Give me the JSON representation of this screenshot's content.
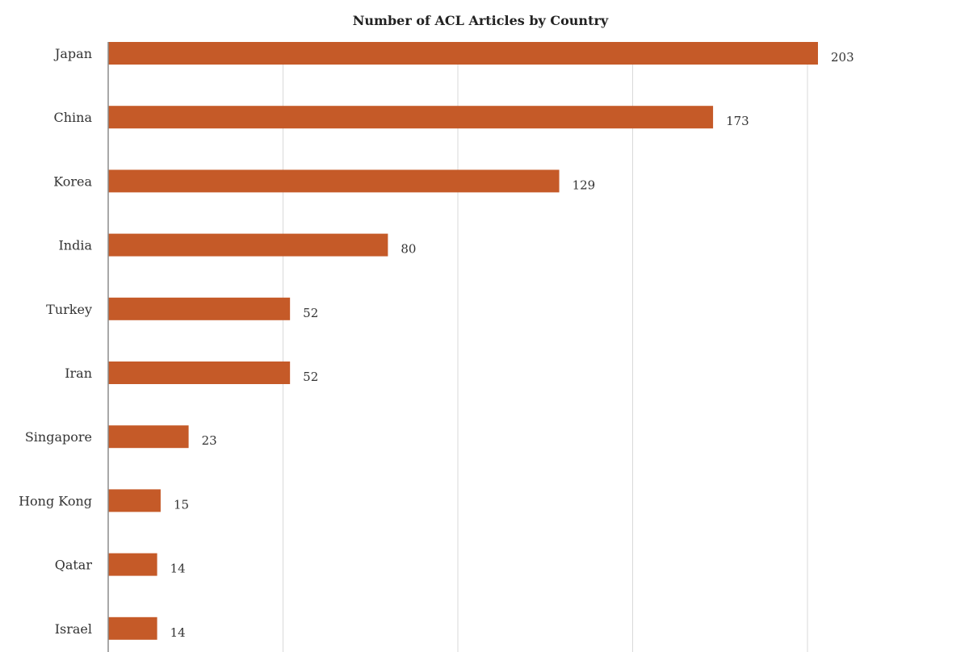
{
  "chart_data": {
    "type": "bar",
    "orientation": "horizontal",
    "title": "Number of ACL Articles by Country",
    "xlabel": "",
    "ylabel": "",
    "categories": [
      "Japan",
      "China",
      "Korea",
      "India",
      "Turkey",
      "Iran",
      "Singapore",
      "Hong Kong",
      "Qatar",
      "Israel"
    ],
    "values": [
      203,
      173,
      129,
      80,
      52,
      52,
      23,
      15,
      14,
      14
    ],
    "xlim": [
      0,
      250
    ],
    "grid": true,
    "legend": "none",
    "data_labels": true,
    "colors": {
      "bar": "#C55A28",
      "grid": "#D9D9D9",
      "axis": "#8C8C8C"
    }
  }
}
